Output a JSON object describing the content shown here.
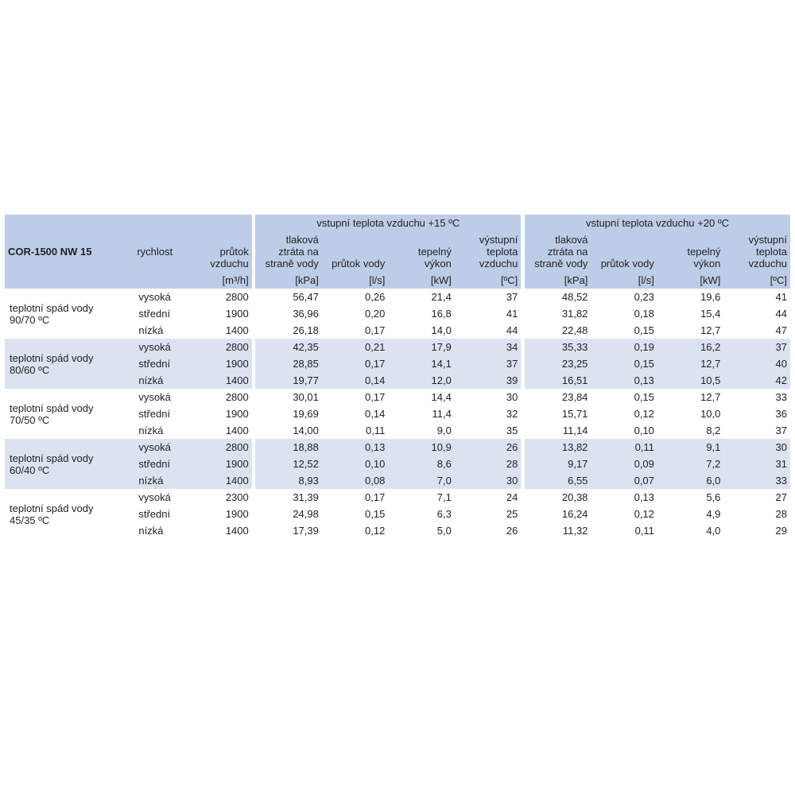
{
  "colors": {
    "header_bg": "#bdcde8",
    "stripe_bg": "#dbe3f1",
    "page_bg": "#ffffff",
    "text": "#222222"
  },
  "title": "COR-1500 NW 15",
  "cols": {
    "speed": "rychlost",
    "airflow": "průtok vzduchu",
    "group15": "vstupní teplota vzduchu +15 ºC",
    "group20": "vstupní teplota vzduchu +20 ºC",
    "dp": "tlaková ztráta na straně vody",
    "qw": "průtok vody",
    "pwr": "tepelný výkon",
    "tout": "výstupní teplota vzduchu"
  },
  "units": {
    "airflow": "[m³/h]",
    "dp": "[kPa]",
    "qw": "[l/s]",
    "pwr": "[kW]",
    "tout": "[ºC]"
  },
  "speeds": [
    "vysoká",
    "střední",
    "nízká"
  ],
  "groups": [
    {
      "label": "teplotní spád vody 90/70 ºC",
      "rows": [
        {
          "af": "2800",
          "a": [
            "56,47",
            "0,26",
            "21,4",
            "37"
          ],
          "b": [
            "48,52",
            "0,23",
            "19,6",
            "41"
          ]
        },
        {
          "af": "1900",
          "a": [
            "36,96",
            "0,20",
            "16,8",
            "41"
          ],
          "b": [
            "31,82",
            "0,18",
            "15,4",
            "44"
          ]
        },
        {
          "af": "1400",
          "a": [
            "26,18",
            "0,17",
            "14,0",
            "44"
          ],
          "b": [
            "22,48",
            "0,15",
            "12,7",
            "47"
          ]
        }
      ]
    },
    {
      "label": "teplotní spád vody 80/60 ºC",
      "rows": [
        {
          "af": "2800",
          "a": [
            "42,35",
            "0,21",
            "17,9",
            "34"
          ],
          "b": [
            "35,33",
            "0,19",
            "16,2",
            "37"
          ]
        },
        {
          "af": "1900",
          "a": [
            "28,85",
            "0,17",
            "14,1",
            "37"
          ],
          "b": [
            "23,25",
            "0,15",
            "12,7",
            "40"
          ]
        },
        {
          "af": "1400",
          "a": [
            "19,77",
            "0,14",
            "12,0",
            "39"
          ],
          "b": [
            "16,51",
            "0,13",
            "10,5",
            "42"
          ]
        }
      ]
    },
    {
      "label": "teplotní spád vody 70/50 ºC",
      "rows": [
        {
          "af": "2800",
          "a": [
            "30,01",
            "0,17",
            "14,4",
            "30"
          ],
          "b": [
            "23,84",
            "0,15",
            "12,7",
            "33"
          ]
        },
        {
          "af": "1900",
          "a": [
            "19,69",
            "0,14",
            "11,4",
            "32"
          ],
          "b": [
            "15,71",
            "0,12",
            "10,0",
            "36"
          ]
        },
        {
          "af": "1400",
          "a": [
            "14,00",
            "0,11",
            "9,0",
            "35"
          ],
          "b": [
            "11,14",
            "0,10",
            "8,2",
            "37"
          ]
        }
      ]
    },
    {
      "label": "teplotní spád vody 60/40 ºC",
      "rows": [
        {
          "af": "2800",
          "a": [
            "18,88",
            "0,13",
            "10,9",
            "26"
          ],
          "b": [
            "13,82",
            "0,11",
            "9,1",
            "30"
          ]
        },
        {
          "af": "1900",
          "a": [
            "12,52",
            "0,10",
            "8,6",
            "28"
          ],
          "b": [
            "9,17",
            "0,09",
            "7,2",
            "31"
          ]
        },
        {
          "af": "1400",
          "a": [
            "8,93",
            "0,08",
            "7,0",
            "30"
          ],
          "b": [
            "6,55",
            "0,07",
            "6,0",
            "33"
          ]
        }
      ]
    },
    {
      "label": "teplotní spád vody 45/35 ºC",
      "rows": [
        {
          "af": "2300",
          "a": [
            "31,39",
            "0,17",
            "7,1",
            "24"
          ],
          "b": [
            "20,38",
            "0,13",
            "5,6",
            "27"
          ]
        },
        {
          "af": "1900",
          "a": [
            "24,98",
            "0,15",
            "6,3",
            "25"
          ],
          "b": [
            "16,24",
            "0,12",
            "4,9",
            "28"
          ]
        },
        {
          "af": "1400",
          "a": [
            "17,39",
            "0,12",
            "5,0",
            "26"
          ],
          "b": [
            "11,32",
            "0,11",
            "4,0",
            "29"
          ]
        }
      ]
    }
  ]
}
